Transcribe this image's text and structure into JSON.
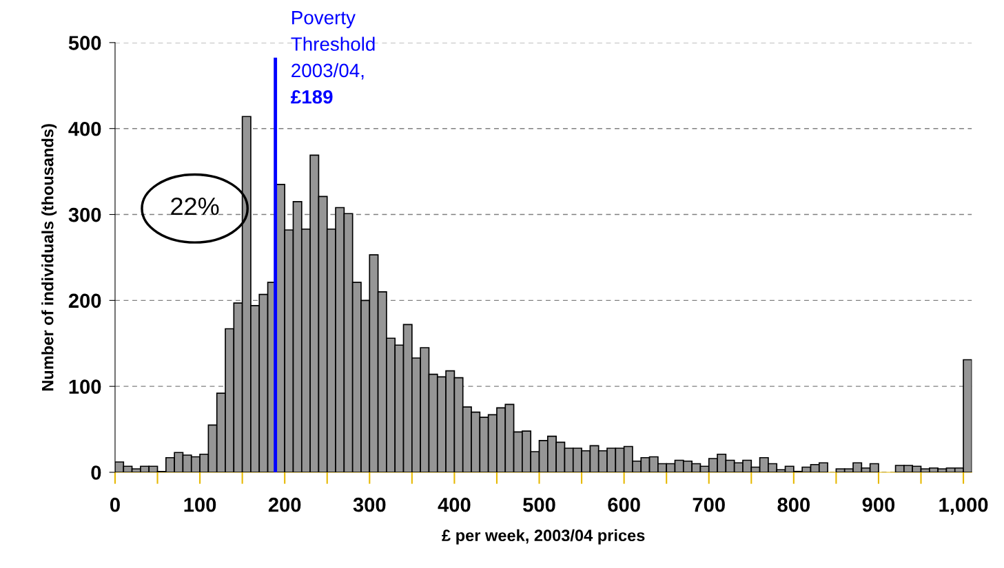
{
  "chart_data": {
    "type": "histogram",
    "xlabel": "£ per week, 2003/04 prices",
    "ylabel": "Number of individuals (thousands)",
    "bins": [
      0,
      10,
      20,
      30,
      40,
      50,
      60,
      70,
      80,
      90,
      100,
      110,
      120,
      130,
      140,
      150,
      160,
      170,
      180,
      190,
      200,
      210,
      220,
      230,
      240,
      250,
      260,
      270,
      280,
      290,
      300,
      310,
      320,
      330,
      340,
      350,
      360,
      370,
      380,
      390,
      400,
      410,
      420,
      430,
      440,
      450,
      460,
      470,
      480,
      490,
      500,
      510,
      520,
      530,
      540,
      550,
      560,
      570,
      580,
      590,
      600,
      610,
      620,
      630,
      640,
      650,
      660,
      670,
      680,
      690,
      700,
      710,
      720,
      730,
      740,
      750,
      760,
      770,
      780,
      790,
      800,
      810,
      820,
      830,
      840,
      850,
      860,
      870,
      880,
      890,
      900,
      910,
      920,
      930,
      940,
      950,
      960,
      970,
      980,
      990,
      1000,
      1010
    ],
    "values": [
      12,
      7,
      4,
      7,
      7,
      1,
      17,
      23,
      20,
      18,
      21,
      55,
      92,
      167,
      197,
      414,
      194,
      207,
      221,
      335,
      282,
      315,
      283,
      369,
      321,
      283,
      308,
      301,
      221,
      200,
      253,
      210,
      156,
      148,
      172,
      133,
      145,
      114,
      111,
      118,
      110,
      76,
      70,
      64,
      67,
      75,
      79,
      47,
      48,
      24,
      37,
      42,
      35,
      28,
      28,
      25,
      31,
      25,
      28,
      28,
      30,
      13,
      17,
      18,
      10,
      10,
      14,
      13,
      10,
      7,
      16,
      21,
      14,
      11,
      14,
      6,
      17,
      10,
      3,
      7,
      1,
      6,
      9,
      11,
      0,
      4,
      4,
      11,
      5,
      10,
      0,
      0,
      8,
      8,
      7,
      4,
      5,
      4,
      5,
      5,
      131
    ],
    "color": "#969696",
    "xlim": [
      0,
      1010
    ],
    "xticks": [
      0,
      100,
      200,
      300,
      400,
      500,
      600,
      700,
      800,
      900,
      {
        "value": 1000,
        "label": "1,000"
      }
    ],
    "ylim": [
      0,
      500
    ],
    "yticks": [
      0,
      100,
      200,
      300,
      400,
      500
    ],
    "grid": "y",
    "ref_lines": [
      {
        "axis": "x",
        "value": 189,
        "label": "Poverty\nThreshold\n2003/04,\n£189",
        "color": "#0000ff"
      }
    ],
    "annotations": [
      "22%"
    ]
  }
}
